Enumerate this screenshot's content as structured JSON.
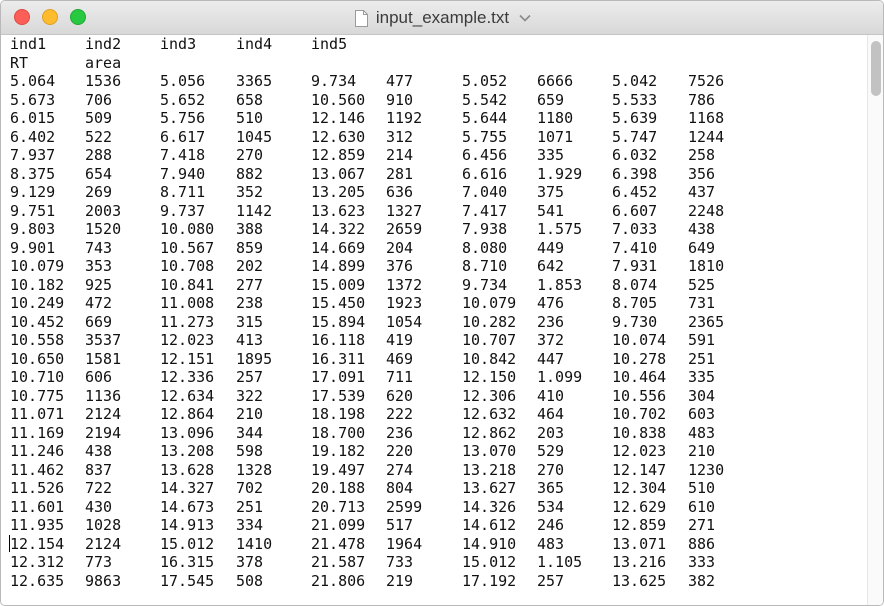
{
  "window": {
    "title": "input_example.txt",
    "buttons": {
      "close": "close-button",
      "minimize": "minimize-button",
      "zoom": "zoom-button"
    }
  },
  "document": {
    "header_rows": [
      [
        "ind1",
        "ind2",
        "ind3",
        "ind4",
        "ind5",
        "",
        "",
        "",
        "",
        ""
      ],
      [
        "RT",
        "area",
        "",
        "",
        "",
        "",
        "",
        "",
        "",
        ""
      ]
    ],
    "rows": [
      [
        "5.064",
        "1536",
        "5.056",
        "3365",
        "9.734",
        "477",
        "5.052",
        "6666",
        "5.042",
        "7526"
      ],
      [
        "5.673",
        "706",
        "5.652",
        "658",
        "10.560",
        "910",
        "5.542",
        "659",
        "5.533",
        "786"
      ],
      [
        "6.015",
        "509",
        "5.756",
        "510",
        "12.146",
        "1192",
        "5.644",
        "1180",
        "5.639",
        "1168"
      ],
      [
        "6.402",
        "522",
        "6.617",
        "1045",
        "12.630",
        "312",
        "5.755",
        "1071",
        "5.747",
        "1244"
      ],
      [
        "7.937",
        "288",
        "7.418",
        "270",
        "12.859",
        "214",
        "6.456",
        "335",
        "6.032",
        "258"
      ],
      [
        "8.375",
        "654",
        "7.940",
        "882",
        "13.067",
        "281",
        "6.616",
        "1.929",
        "6.398",
        "356"
      ],
      [
        "9.129",
        "269",
        "8.711",
        "352",
        "13.205",
        "636",
        "7.040",
        "375",
        "6.452",
        "437"
      ],
      [
        "9.751",
        "2003",
        "9.737",
        "1142",
        "13.623",
        "1327",
        "7.417",
        "541",
        "6.607",
        "2248"
      ],
      [
        "9.803",
        "1520",
        "10.080",
        "388",
        "14.322",
        "2659",
        "7.938",
        "1.575",
        "7.033",
        "438"
      ],
      [
        "9.901",
        "743",
        "10.567",
        "859",
        "14.669",
        "204",
        "8.080",
        "449",
        "7.410",
        "649"
      ],
      [
        "10.079",
        "353",
        "10.708",
        "202",
        "14.899",
        "376",
        "8.710",
        "642",
        "7.931",
        "1810"
      ],
      [
        "10.182",
        "925",
        "10.841",
        "277",
        "15.009",
        "1372",
        "9.734",
        "1.853",
        "8.074",
        "525"
      ],
      [
        "10.249",
        "472",
        "11.008",
        "238",
        "15.450",
        "1923",
        "10.079",
        "476",
        "8.705",
        "731"
      ],
      [
        "10.452",
        "669",
        "11.273",
        "315",
        "15.894",
        "1054",
        "10.282",
        "236",
        "9.730",
        "2365"
      ],
      [
        "10.558",
        "3537",
        "12.023",
        "413",
        "16.118",
        "419",
        "10.707",
        "372",
        "10.074",
        "591"
      ],
      [
        "10.650",
        "1581",
        "12.151",
        "1895",
        "16.311",
        "469",
        "10.842",
        "447",
        "10.278",
        "251"
      ],
      [
        "10.710",
        "606",
        "12.336",
        "257",
        "17.091",
        "711",
        "12.150",
        "1.099",
        "10.464",
        "335"
      ],
      [
        "10.775",
        "1136",
        "12.634",
        "322",
        "17.539",
        "620",
        "12.306",
        "410",
        "10.556",
        "304"
      ],
      [
        "11.071",
        "2124",
        "12.864",
        "210",
        "18.198",
        "222",
        "12.632",
        "464",
        "10.702",
        "603"
      ],
      [
        "11.169",
        "2194",
        "13.096",
        "344",
        "18.700",
        "236",
        "12.862",
        "203",
        "10.838",
        "483"
      ],
      [
        "11.246",
        "438",
        "13.208",
        "598",
        "19.182",
        "220",
        "13.070",
        "529",
        "12.023",
        "210"
      ],
      [
        "11.462",
        "837",
        "13.628",
        "1328",
        "19.497",
        "274",
        "13.218",
        "270",
        "12.147",
        "1230"
      ],
      [
        "11.526",
        "722",
        "14.327",
        "702",
        "20.188",
        "804",
        "13.627",
        "365",
        "12.304",
        "510"
      ],
      [
        "11.601",
        "430",
        "14.673",
        "251",
        "20.713",
        "2599",
        "14.326",
        "534",
        "12.629",
        "610"
      ],
      [
        "11.935",
        "1028",
        "14.913",
        "334",
        "21.099",
        "517",
        "14.612",
        "246",
        "12.859",
        "271"
      ],
      [
        "12.154",
        "2124",
        "15.012",
        "1410",
        "21.478",
        "1964",
        "14.910",
        "483",
        "13.071",
        "886"
      ],
      [
        "12.312",
        "773",
        "16.315",
        "378",
        "21.587",
        "733",
        "15.012",
        "1.105",
        "13.216",
        "333"
      ],
      [
        "12.635",
        "9863",
        "17.545",
        "508",
        "21.806",
        "219",
        "17.192",
        "257",
        "13.625",
        "382"
      ]
    ]
  },
  "colors": {
    "close": "#fc5f57",
    "minimize": "#fdbc2e",
    "zoom": "#28c840",
    "titlebar": "#e2e2e2",
    "text": "#111111"
  },
  "icons": {
    "document": "document-icon",
    "title_menu": "chevron-down-icon"
  }
}
